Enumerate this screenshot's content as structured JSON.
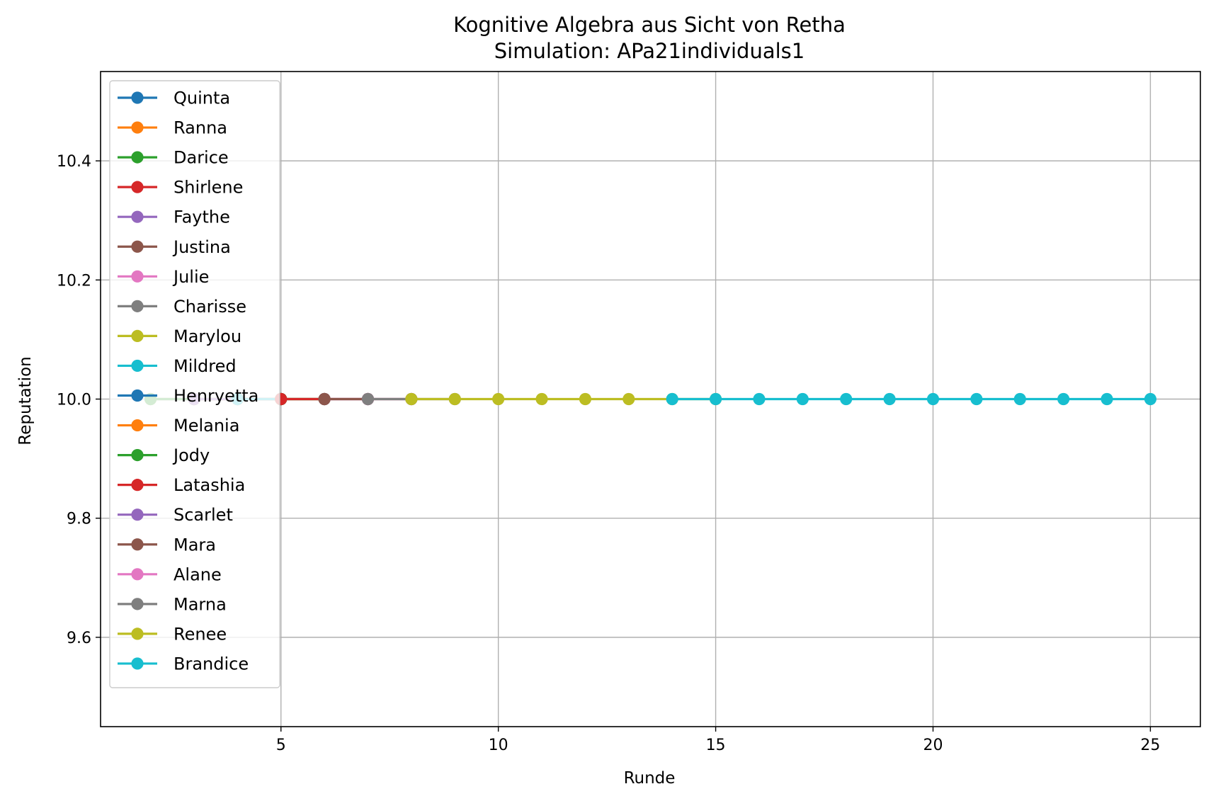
{
  "chart_data": {
    "type": "line",
    "title": "Kognitive Algebra aus Sicht von Retha",
    "subtitle": "Simulation: APa21individuals1",
    "xlabel": "Runde",
    "ylabel": "Reputation",
    "xlim": [
      0.85,
      26.15
    ],
    "ylim": [
      9.45,
      10.55
    ],
    "xticks": [
      5,
      10,
      15,
      20,
      25
    ],
    "xtick_labels": [
      "5",
      "10",
      "15",
      "20",
      "25"
    ],
    "yticks": [
      9.6,
      9.8,
      10.0,
      10.2,
      10.4
    ],
    "ytick_labels": [
      "9.6",
      "9.8",
      "10.0",
      "10.2",
      "10.4"
    ],
    "grid": true,
    "legend_position": "upper-left",
    "series": [
      {
        "name": "Quinta",
        "color": "#1f77b4",
        "x": [
          2,
          3,
          4,
          5
        ],
        "y": [
          10,
          10,
          10,
          10
        ]
      },
      {
        "name": "Ranna",
        "color": "#ff7f0e",
        "x": [
          2,
          3,
          4,
          5
        ],
        "y": [
          10,
          10,
          10,
          10
        ]
      },
      {
        "name": "Darice",
        "color": "#2ca02c",
        "x": [
          2,
          3,
          4,
          5
        ],
        "y": [
          10,
          10,
          10,
          10
        ]
      },
      {
        "name": "Shirlene",
        "color": "#d62728",
        "x": [
          3,
          4,
          5
        ],
        "y": [
          10,
          10,
          10
        ]
      },
      {
        "name": "Faythe",
        "color": "#9467bd",
        "x": [
          3,
          4,
          5
        ],
        "y": [
          10,
          10,
          10
        ]
      },
      {
        "name": "Justina",
        "color": "#8c564b",
        "x": [
          4,
          5
        ],
        "y": [
          10,
          10
        ]
      },
      {
        "name": "Julie",
        "color": "#e377c2",
        "x": [
          4,
          5
        ],
        "y": [
          10,
          10
        ]
      },
      {
        "name": "Charisse",
        "color": "#7f7f7f",
        "x": [
          4,
          5
        ],
        "y": [
          10,
          10
        ]
      },
      {
        "name": "Marylou",
        "color": "#bcbd22",
        "x": [
          4,
          5
        ],
        "y": [
          10,
          10
        ]
      },
      {
        "name": "Mildred",
        "color": "#17becf",
        "x": [
          4,
          5
        ],
        "y": [
          10,
          10
        ]
      },
      {
        "name": "Henryetta",
        "color": "#1f77b4",
        "x": [
          5,
          6
        ],
        "y": [
          10,
          10
        ]
      },
      {
        "name": "Melania",
        "color": "#ff7f0e",
        "x": [
          5,
          6
        ],
        "y": [
          10,
          10
        ]
      },
      {
        "name": "Jody",
        "color": "#2ca02c",
        "x": [
          5,
          6
        ],
        "y": [
          10,
          10
        ]
      },
      {
        "name": "Latashia",
        "color": "#d62728",
        "x": [
          5,
          6,
          7
        ],
        "y": [
          10,
          10,
          10
        ]
      },
      {
        "name": "Scarlet",
        "color": "#9467bd",
        "x": [
          6,
          7
        ],
        "y": [
          10,
          10
        ]
      },
      {
        "name": "Mara",
        "color": "#8c564b",
        "x": [
          6,
          7,
          8
        ],
        "y": [
          10,
          10,
          10
        ]
      },
      {
        "name": "Alane",
        "color": "#e377c2",
        "x": [
          7,
          8
        ],
        "y": [
          10,
          10
        ]
      },
      {
        "name": "Marna",
        "color": "#7f7f7f",
        "x": [
          7,
          8,
          9
        ],
        "y": [
          10,
          10,
          10
        ]
      },
      {
        "name": "Renee",
        "color": "#bcbd22",
        "x": [
          8,
          9,
          10,
          11,
          12,
          13,
          14,
          15
        ],
        "y": [
          10,
          10,
          10,
          10,
          10,
          10,
          10,
          10
        ]
      },
      {
        "name": "Brandice",
        "color": "#17becf",
        "x": [
          14,
          15,
          16,
          17,
          18,
          19,
          20,
          21,
          22,
          23,
          24,
          25
        ],
        "y": [
          10,
          10,
          10,
          10,
          10,
          10,
          10,
          10,
          10,
          10,
          10,
          10
        ]
      }
    ]
  }
}
